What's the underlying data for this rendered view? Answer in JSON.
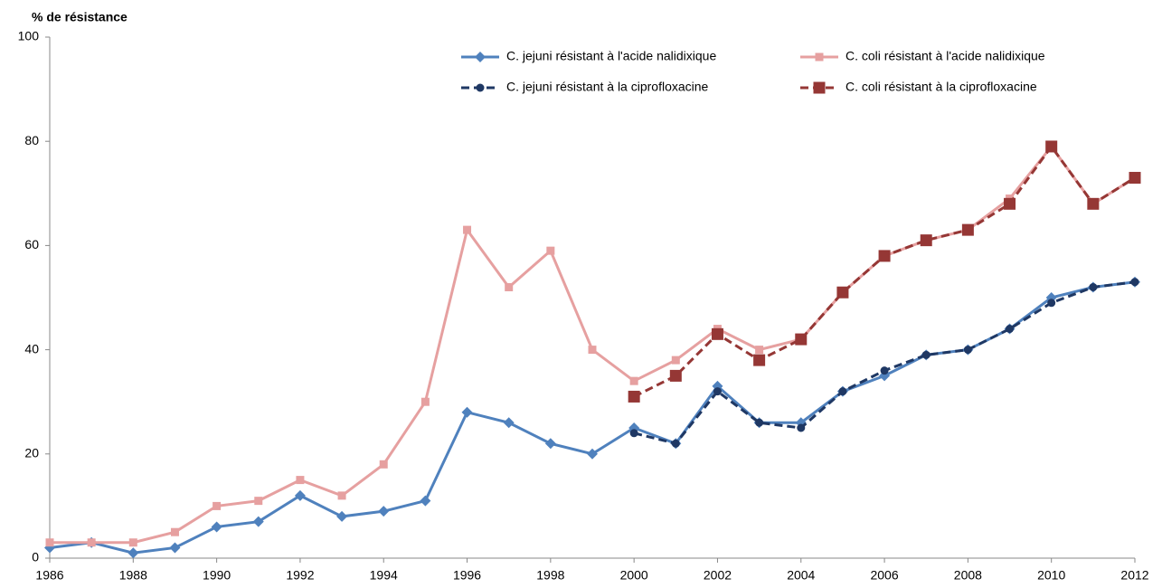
{
  "chart_data": {
    "type": "line",
    "y_label": "% de résistance",
    "x": [
      1986,
      1987,
      1988,
      1989,
      1990,
      1991,
      1992,
      1993,
      1994,
      1995,
      1996,
      1997,
      1998,
      1999,
      2000,
      2001,
      2002,
      2003,
      2004,
      2005,
      2006,
      2007,
      2008,
      2009,
      2010,
      2011,
      2012
    ],
    "xlim": [
      1986,
      2012
    ],
    "xticks": [
      1986,
      1988,
      1990,
      1992,
      1994,
      1996,
      1998,
      2000,
      2002,
      2004,
      2006,
      2008,
      2010,
      2012
    ],
    "ylim": [
      0,
      100
    ],
    "yticks": [
      0,
      20,
      40,
      60,
      80,
      100
    ],
    "grid": false,
    "legend": "top-right",
    "series": [
      {
        "name": "C. jejuni résistant à l'acide nalidixique",
        "color": "#4f81bd",
        "marker": "diamond",
        "dashed": false,
        "values": [
          2,
          3,
          1,
          2,
          6,
          7,
          12,
          8,
          9,
          11,
          28,
          26,
          22,
          20,
          25,
          22,
          33,
          26,
          26,
          32,
          35,
          39,
          40,
          44,
          50,
          52,
          53
        ]
      },
      {
        "name": "C. coli résistant à l'acide nalidixique",
        "color": "#e6a0a0",
        "marker": "square",
        "dashed": false,
        "values": [
          3,
          3,
          3,
          5,
          10,
          11,
          15,
          12,
          18,
          30,
          63,
          52,
          59,
          40,
          34,
          38,
          44,
          40,
          42,
          51,
          58,
          61,
          63,
          69,
          79,
          68,
          73
        ]
      },
      {
        "name": "C. jejuni résistant à la ciprofloxacine",
        "color": "#1f3864",
        "marker": "circle",
        "dashed": true,
        "values": [
          null,
          null,
          null,
          null,
          null,
          null,
          null,
          null,
          null,
          null,
          null,
          null,
          null,
          null,
          24,
          22,
          32,
          26,
          25,
          32,
          36,
          39,
          40,
          44,
          49,
          52,
          53
        ]
      },
      {
        "name": "C. coli résistant à la ciprofloxacine",
        "color": "#953735",
        "marker": "bigsquare",
        "dashed": true,
        "values": [
          null,
          null,
          null,
          null,
          null,
          null,
          null,
          null,
          null,
          null,
          null,
          null,
          null,
          null,
          31,
          35,
          43,
          38,
          42,
          51,
          58,
          61,
          63,
          68,
          79,
          68,
          73
        ]
      }
    ]
  }
}
